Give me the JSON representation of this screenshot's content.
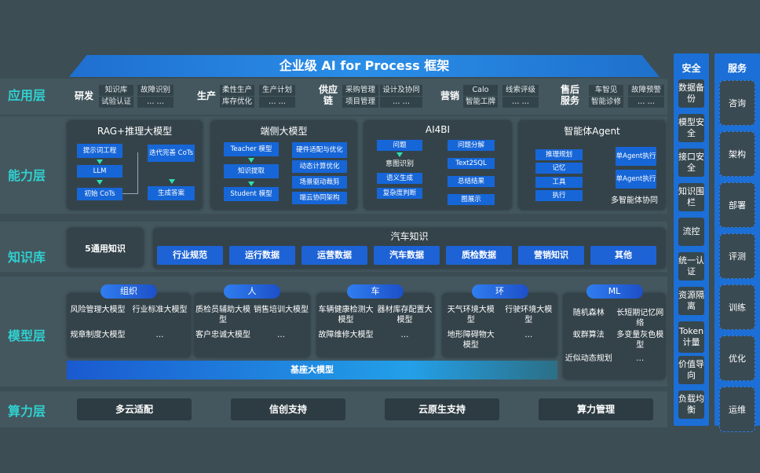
{
  "title": "企业级 AI for Process 框架",
  "layers": {
    "app": "应用层",
    "capability": "能力层",
    "knowledge": "知识库",
    "model": "模型层",
    "compute": "算力层"
  },
  "app_groups": [
    {
      "name": "研发",
      "items": [
        [
          "知识库",
          "试验认证"
        ],
        [
          "故障识别",
          "… …"
        ]
      ]
    },
    {
      "name": "生产",
      "items": [
        [
          "柔性生产",
          "库存优化"
        ],
        [
          "生产计划",
          "… …"
        ]
      ]
    },
    {
      "name": "供应链",
      "items": [
        [
          "采购管理",
          "项目管理"
        ],
        [
          "设计及协同",
          "… …"
        ]
      ]
    },
    {
      "name": "营销",
      "items": [
        [
          "Calo",
          "智能工牌"
        ],
        [
          "线索评级",
          "… …"
        ]
      ]
    },
    {
      "name": "售后服务",
      "items": [
        [
          "车智见",
          "智能诊修"
        ],
        [
          "故障预警",
          "… …"
        ]
      ]
    }
  ],
  "capability": {
    "rag": {
      "title": "RAG+推理大模型",
      "items": [
        "提示词工程",
        "LLM",
        "初始 CoTs",
        "迭代完善 CoTs",
        "生成答案"
      ]
    },
    "edge": {
      "title": "端侧大模型",
      "items": [
        "Teacher 模型",
        "知识提取",
        "Student 模型",
        "硬件适配与优化",
        "动态计算优化",
        "场景驱动裁剪",
        "端云协同架构"
      ]
    },
    "ai4bi": {
      "title": "AI4BI",
      "items": [
        "问题",
        "意图识别",
        "语义生成",
        "复杂度判断",
        "问题分解",
        "Text2SQL",
        "总结结果",
        "图展示"
      ]
    },
    "agent": {
      "title": "智能体Agent",
      "items": [
        "推理规划",
        "记忆",
        "工具",
        "执行",
        "单Agent执行",
        "单Agent执行"
      ],
      "footer": "多智能体协同"
    }
  },
  "knowledge": {
    "general": "5通用知识",
    "auto_title": "汽车知识",
    "auto_items": [
      "行业规范",
      "运行数据",
      "运营数据",
      "汽车数据",
      "质检数据",
      "营销知识",
      "其他"
    ]
  },
  "model": {
    "groups": [
      {
        "name": "组织",
        "items": [
          "风险管理大模型",
          "行业标准大模型",
          "规章制度大模型",
          "…"
        ]
      },
      {
        "name": "人",
        "items": [
          "质检员辅助大模型",
          "销售培训大模型",
          "客户忠诚大模型",
          "…"
        ]
      },
      {
        "name": "车",
        "items": [
          "车辆健康检测大模型",
          "器材库存配置大模型",
          "故障维修大模型",
          "…"
        ]
      },
      {
        "name": "环",
        "items": [
          "天气环境大模型",
          "行驶环境大模型",
          "地形障碍物大模型",
          "…"
        ]
      },
      {
        "name": "ML",
        "items": [
          "随机森林",
          "长短期记忆网络",
          "蚁群算法",
          "多变量灰色模型",
          "近似动态规划",
          "…"
        ]
      }
    ],
    "base": "基座大模型"
  },
  "compute": [
    "多云适配",
    "信创支持",
    "云原生支持",
    "算力管理"
  ],
  "security": {
    "title": "安全",
    "items": [
      "数据备份",
      "模型安全",
      "接口安全",
      "知识围栏",
      "流控",
      "统一认证",
      "资源隔离",
      "Token计量",
      "价值导向",
      "负载均衡"
    ]
  },
  "services": {
    "title": "服务",
    "items": [
      "咨询",
      "架构",
      "部署",
      "评测",
      "训练",
      "优化",
      "运维"
    ]
  }
}
